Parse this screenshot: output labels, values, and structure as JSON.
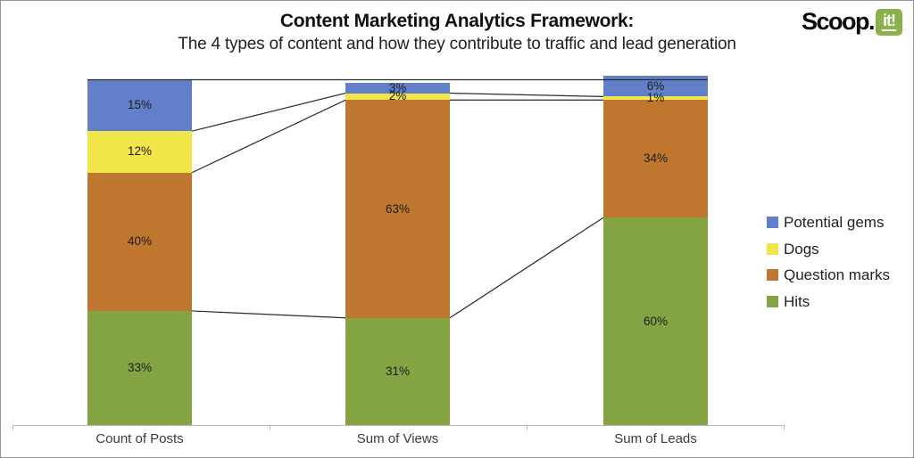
{
  "header": {
    "title": "Content Marketing Analytics Framework:",
    "subtitle": "The 4 types of content and how they contribute to traffic and lead generation"
  },
  "logo": {
    "text_black": "Scoop.",
    "text_box": "it!",
    "box_color": "#8bb14f",
    "box_text_color": "#ffffff"
  },
  "chart_data": {
    "type": "bar",
    "stacked": true,
    "unit": "%",
    "title": "Content Marketing Analytics Framework:",
    "subtitle": "The 4 types of content and how they contribute to traffic and lead generation",
    "categories": [
      "Count of Posts",
      "Sum of Views",
      "Sum of Leads"
    ],
    "series": [
      {
        "name": "Hits",
        "color": "#84a443",
        "values": [
          33,
          31,
          60
        ]
      },
      {
        "name": "Question marks",
        "color": "#bf7730",
        "values": [
          40,
          63,
          34
        ]
      },
      {
        "name": "Dogs",
        "color": "#f2e549",
        "values": [
          12,
          2,
          1
        ]
      },
      {
        "name": "Potential gems",
        "color": "#6280ca",
        "values": [
          15,
          3,
          6
        ]
      }
    ],
    "data_labels": [
      "15%",
      "12%",
      "40%",
      "33%",
      "3%",
      "2%",
      "63%",
      "31%",
      "6%",
      "1%",
      "34%",
      "60%"
    ],
    "legend": {
      "position": "right",
      "order": [
        "Potential gems",
        "Dogs",
        "Question marks",
        "Hits"
      ]
    },
    "ylim": [
      0,
      100
    ],
    "grid": false,
    "connector_lines": true
  },
  "style": {
    "connector_color": "#2b2b2b",
    "axis_line_color": "#b7b7b7",
    "category_label_color": "#3b3b3b"
  }
}
